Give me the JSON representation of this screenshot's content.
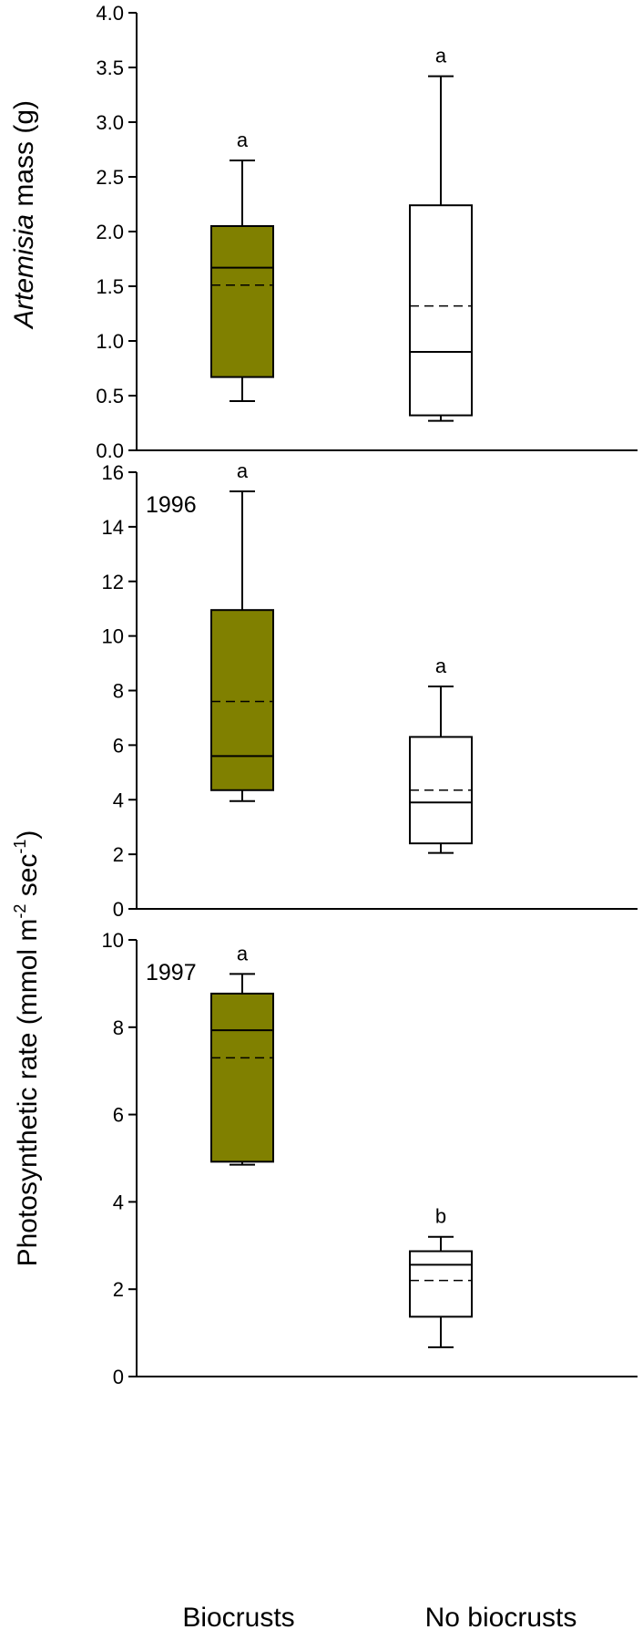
{
  "colors": {
    "biocrusts": "#808000",
    "no_biocrusts": "#ffffff",
    "ink": "#000000"
  },
  "chart_data": [
    {
      "type": "box",
      "panel_label": "",
      "ylabel_italic": "Artemisia",
      "ylabel_rest": " mass (g)",
      "ylim": [
        0,
        4
      ],
      "yticks": [
        "0.0",
        "0.5",
        "1.0",
        "1.5",
        "2.0",
        "2.5",
        "3.0",
        "3.5",
        "4.0"
      ],
      "ytick_values": [
        0,
        0.5,
        1,
        1.5,
        2,
        2.5,
        3,
        3.5,
        4
      ],
      "boxes": [
        {
          "category": "Biocrusts",
          "whisker_low": 0.45,
          "q1": 0.67,
          "median": 1.67,
          "mean": 1.51,
          "q3": 2.05,
          "whisker_high": 2.65,
          "letter": "a"
        },
        {
          "category": "No biocrusts",
          "whisker_low": 0.27,
          "q1": 0.32,
          "median": 0.9,
          "mean": 1.32,
          "q3": 2.24,
          "whisker_high": 3.42,
          "letter": "a"
        }
      ]
    },
    {
      "type": "box",
      "panel_label": "1996",
      "ylim": [
        0,
        16
      ],
      "yticks": [
        "0",
        "2",
        "4",
        "6",
        "8",
        "10",
        "12",
        "14",
        "16"
      ],
      "ytick_values": [
        0,
        2,
        4,
        6,
        8,
        10,
        12,
        14,
        16
      ],
      "boxes": [
        {
          "category": "Biocrusts",
          "whisker_low": 3.95,
          "q1": 4.35,
          "median": 5.6,
          "mean": 7.6,
          "q3": 10.95,
          "whisker_high": 15.3,
          "letter": "a"
        },
        {
          "category": "No biocrusts",
          "whisker_low": 2.05,
          "q1": 2.4,
          "median": 3.9,
          "mean": 4.35,
          "q3": 6.3,
          "whisker_high": 8.15,
          "letter": "a"
        }
      ]
    },
    {
      "type": "box",
      "panel_label": "1997",
      "ylim": [
        0,
        10
      ],
      "yticks": [
        "0",
        "2",
        "4",
        "6",
        "8",
        "10"
      ],
      "ytick_values": [
        0,
        2,
        4,
        6,
        8,
        10
      ],
      "boxes": [
        {
          "category": "Biocrusts",
          "whisker_low": 4.85,
          "q1": 4.92,
          "median": 7.93,
          "mean": 7.3,
          "q3": 8.77,
          "whisker_high": 9.22,
          "letter": "a"
        },
        {
          "category": "No biocrusts",
          "whisker_low": 0.67,
          "q1": 1.37,
          "median": 2.56,
          "mean": 2.2,
          "q3": 2.87,
          "whisker_high": 3.2,
          "letter": "b"
        }
      ]
    }
  ],
  "shared_ylabel": "Photosynthetic rate (mmol m",
  "shared_ylabel_sup1": "-2",
  "shared_ylabel_mid": " sec",
  "shared_ylabel_sup2": "-1",
  "shared_ylabel_end": ")",
  "categories": [
    "Biocrusts",
    "No biocrusts"
  ]
}
